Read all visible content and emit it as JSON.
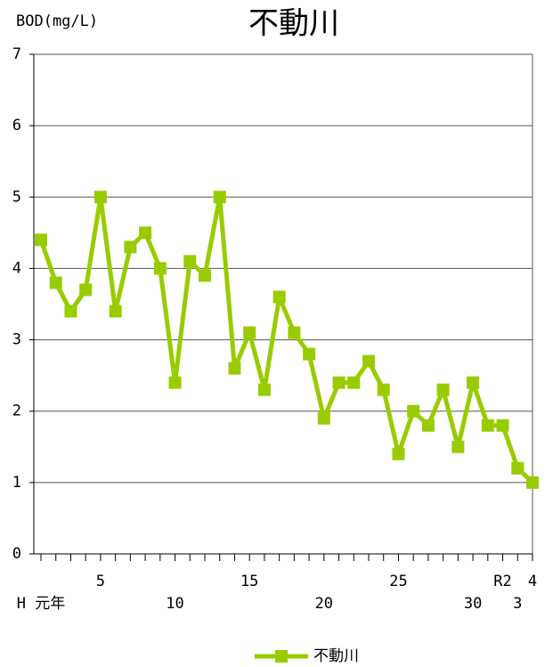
{
  "chart_data": {
    "type": "line",
    "title": "不動川",
    "y_label": "BOD(mg/L)",
    "categories": [
      "H 元年",
      null,
      null,
      null,
      "5",
      null,
      null,
      null,
      null,
      "10",
      null,
      null,
      null,
      null,
      "15",
      null,
      null,
      null,
      null,
      "20",
      null,
      null,
      null,
      null,
      "25",
      null,
      null,
      null,
      null,
      "30",
      null,
      "R2",
      "3",
      "4"
    ],
    "series": [
      {
        "name": "不動川",
        "color": "#99cc00",
        "values": [
          4.4,
          3.8,
          3.4,
          3.7,
          5.0,
          3.4,
          4.3,
          4.5,
          4.0,
          2.4,
          4.1,
          3.9,
          5.0,
          2.6,
          3.1,
          2.3,
          3.6,
          3.1,
          2.8,
          1.9,
          2.4,
          2.4,
          2.7,
          2.3,
          1.4,
          2.0,
          1.8,
          2.3,
          1.5,
          2.4,
          1.8,
          1.8,
          1.2,
          1.0
        ]
      }
    ],
    "ylim": [
      0,
      7
    ],
    "yticks": [
      0,
      1,
      2,
      3,
      4,
      5,
      6,
      7
    ],
    "grid": true,
    "legend": "bottom"
  }
}
